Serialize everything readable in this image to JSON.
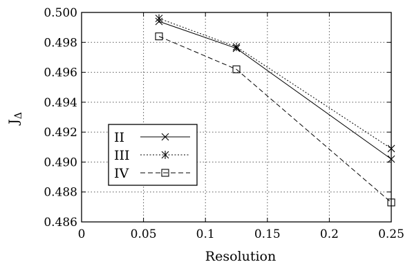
{
  "chart_data": {
    "type": "line",
    "xlabel": "Resolution",
    "ylabel": "J",
    "ylabel_subscript": "Δ",
    "xlim": [
      0,
      0.25
    ],
    "ylim": [
      0.486,
      0.5
    ],
    "x_ticks": [
      "0",
      "0.05",
      "0.1",
      "0.15",
      "0.2",
      "0.25"
    ],
    "y_ticks": [
      "0.486",
      "0.488",
      "0.490",
      "0.492",
      "0.494",
      "0.496",
      "0.498",
      "0.500"
    ],
    "x_tick_values": [
      0,
      0.05,
      0.1,
      0.15,
      0.2,
      0.25
    ],
    "y_tick_values": [
      0.486,
      0.488,
      0.49,
      0.492,
      0.494,
      0.496,
      0.498,
      0.5
    ],
    "grid": true,
    "legend_position": "left",
    "series": [
      {
        "name": "II",
        "x": [
          0.0625,
          0.125,
          0.25
        ],
        "y": [
          0.4994,
          0.4976,
          0.4902
        ],
        "marker": "x",
        "dash": "solid"
      },
      {
        "name": "III",
        "x": [
          0.0625,
          0.125,
          0.25
        ],
        "y": [
          0.4996,
          0.4977,
          0.4909
        ],
        "marker": "star",
        "dash": "dotted"
      },
      {
        "name": "IV",
        "x": [
          0.0625,
          0.125,
          0.25
        ],
        "y": [
          0.4984,
          0.4962,
          0.4873
        ],
        "marker": "square",
        "dash": "dashed"
      }
    ]
  }
}
